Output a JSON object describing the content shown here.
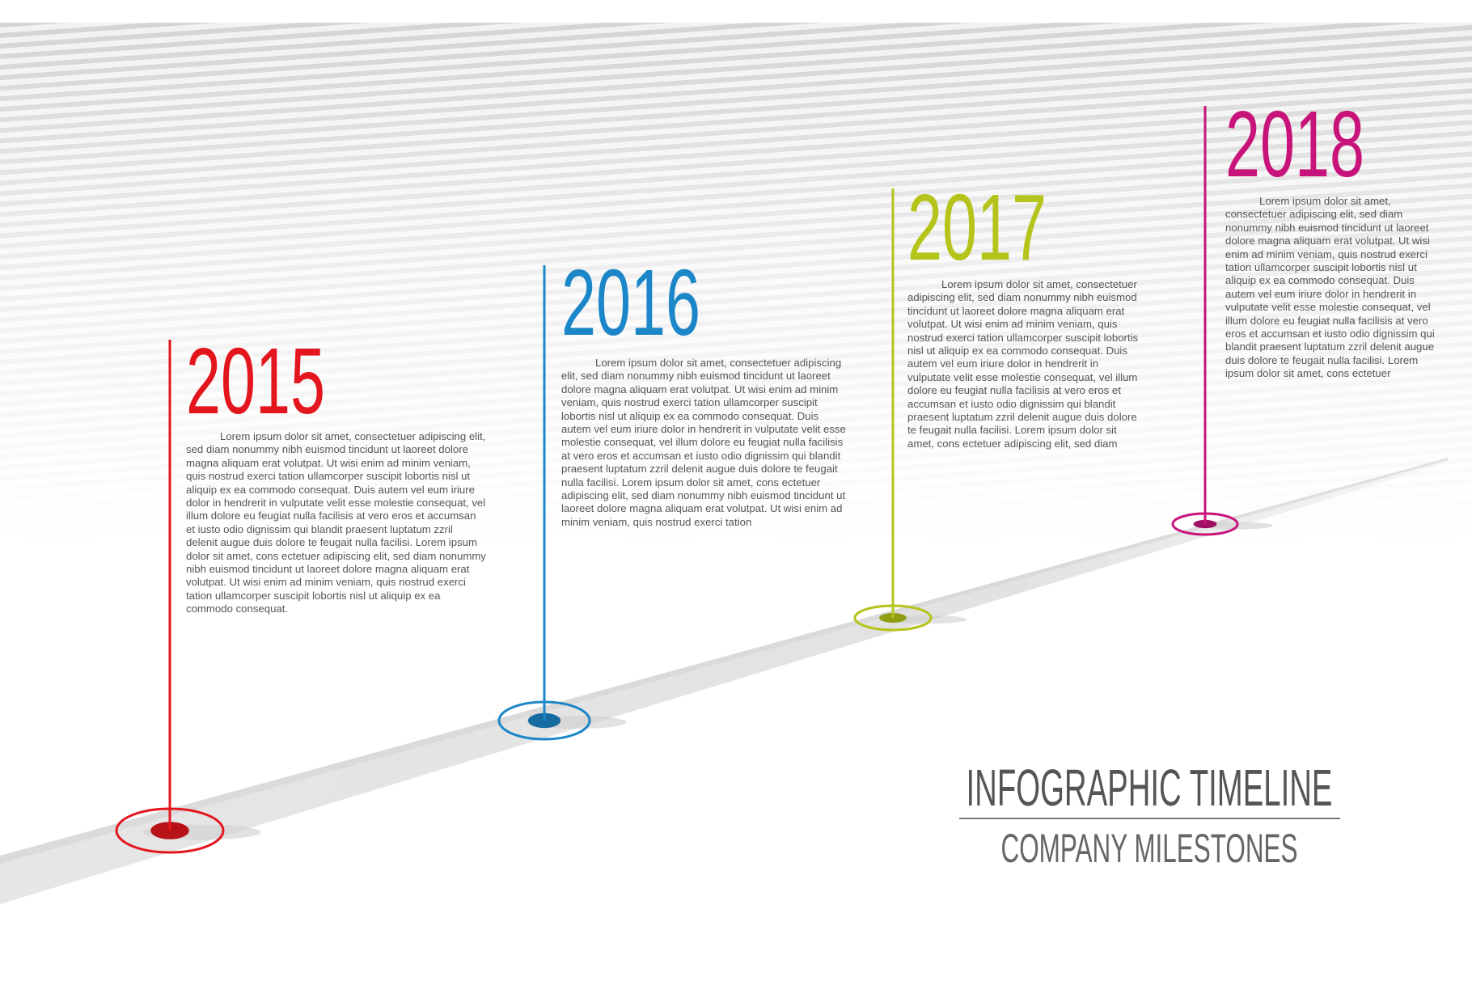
{
  "title": "INFOGRAPHIC TIMELINE",
  "subtitle": "COMPANY MILESTONES",
  "milestones": [
    {
      "year": "2015",
      "color": "#e3161e",
      "text": "Lorem ipsum dolor sit amet, consectetuer adipiscing elit, sed diam nonummy nibh euismod tincidunt ut laoreet dolore magna aliquam erat volutpat. Ut wisi enim ad minim veniam, quis nostrud exerci tation ullamcorper suscipit lobortis nisl ut aliquip ex ea commodo consequat. Duis autem vel eum iriure dolor in hendrerit in vulputate velit esse molestie consequat, vel illum dolore eu feugiat nulla facilisis at vero eros et accumsan et iusto odio dignissim qui blandit praesent luptatum zzril delenit augue duis dolore te feugait nulla facilisi. Lorem ipsum dolor sit amet, cons ectetuer adipiscing elit, sed diam nonummy nibh euismod tincidunt ut laoreet dolore magna aliquam erat volutpat. Ut wisi enim ad minim veniam, quis nostrud exerci tation ullamcorper suscipit lobortis nisl ut aliquip ex ea commodo consequat."
    },
    {
      "year": "2016",
      "color": "#1b86c8",
      "text": "Lorem ipsum dolor sit amet, consectetuer adipiscing elit, sed diam nonummy nibh euismod tincidunt ut laoreet dolore magna aliquam erat volutpat. Ut wisi enim ad minim veniam, quis nostrud exerci tation ullamcorper suscipit lobortis nisl ut aliquip ex ea commodo consequat. Duis autem vel eum iriure dolor in hendrerit in vulputate velit esse molestie consequat, vel illum dolore eu feugiat nulla facilisis at vero eros et accumsan et iusto odio dignissim qui blandit praesent luptatum zzril delenit augue duis dolore te feugait nulla facilisi. Lorem ipsum dolor sit amet, cons ectetuer adipiscing elit, sed diam nonummy nibh euismod tincidunt ut laoreet dolore magna aliquam erat volutpat. Ut wisi enim ad minim veniam, quis nostrud exerci tation"
    },
    {
      "year": "2017",
      "color": "#b5c41a",
      "text": "Lorem ipsum dolor sit amet, consectetuer adipiscing elit, sed diam nonummy nibh euismod tincidunt ut laoreet dolore magna aliquam erat volutpat. Ut wisi enim ad minim veniam, quis nostrud exerci tation ullamcorper suscipit lobortis nisl ut aliquip ex ea commodo consequat. Duis autem vel eum iriure dolor in hendrerit in vulputate velit esse molestie consequat, vel illum dolore eu feugiat nulla facilisis at vero eros et accumsan et iusto odio dignissim qui blandit praesent luptatum zzril delenit augue duis dolore te feugait nulla facilisi. Lorem ipsum dolor sit amet, cons ectetuer adipiscing elit, sed diam"
    },
    {
      "year": "2018",
      "color": "#c8147a",
      "text": "Lorem ipsum dolor sit amet, consectetuer adipiscing elit, sed diam nonummy nibh euismod tincidunt ut laoreet dolore magna aliquam erat volutpat. Ut wisi enim ad minim veniam, quis nostrud exerci tation ullamcorper suscipit lobortis nisl ut aliquip ex ea commodo consequat. Duis autem vel eum iriure dolor in hendrerit in vulputate velit esse molestie consequat, vel illum dolore eu feugiat nulla facilisis at vero eros et accumsan et iusto odio dignissim qui blandit praesent luptatum zzril delenit augue duis dolore te feugait nulla facilisi. Lorem ipsum dolor sit amet, cons ectetuer"
    }
  ]
}
